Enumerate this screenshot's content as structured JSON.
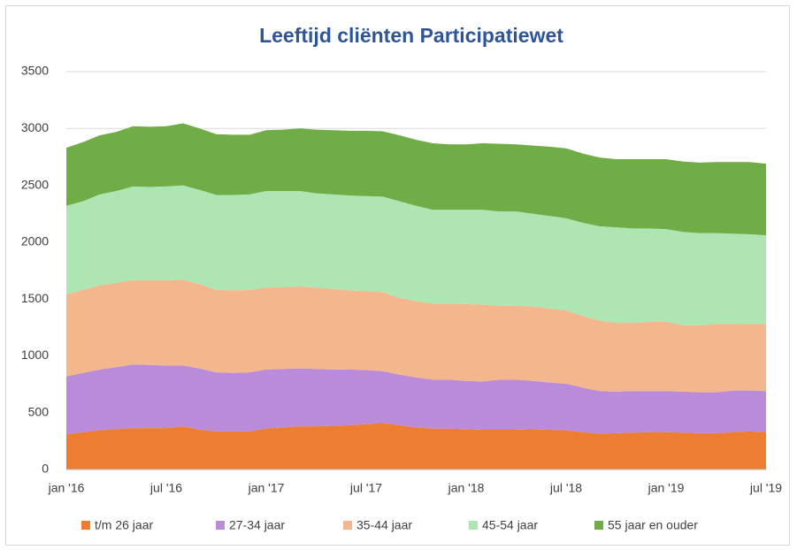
{
  "chart_data": {
    "type": "stacked_area",
    "title": "Leeftijd cliënten Participatiewet",
    "categories": [
      "jan '16",
      null,
      null,
      null,
      null,
      null,
      "jul '16",
      null,
      null,
      null,
      null,
      null,
      "jan '17",
      null,
      null,
      null,
      null,
      null,
      "jul '17",
      null,
      null,
      null,
      null,
      null,
      "jan '18",
      null,
      null,
      null,
      null,
      null,
      "jul '18",
      null,
      null,
      null,
      null,
      null,
      "jan '19",
      null,
      null,
      null,
      null,
      null,
      "jul '19"
    ],
    "series": [
      {
        "name": "t/m 26 jaar",
        "color": "#ed7d31",
        "values": [
          310,
          330,
          345,
          355,
          365,
          365,
          365,
          380,
          350,
          335,
          335,
          335,
          360,
          370,
          380,
          380,
          385,
          390,
          400,
          410,
          390,
          370,
          360,
          360,
          355,
          350,
          350,
          350,
          355,
          350,
          345,
          330,
          315,
          320,
          325,
          330,
          330,
          325,
          320,
          320,
          330,
          335,
          330
        ]
      },
      {
        "name": "27-34 jaar",
        "color": "#b98bd9",
        "values": [
          510,
          520,
          535,
          545,
          560,
          555,
          550,
          535,
          540,
          520,
          515,
          520,
          520,
          515,
          510,
          505,
          495,
          490,
          475,
          455,
          445,
          440,
          430,
          430,
          425,
          425,
          440,
          440,
          425,
          415,
          410,
          390,
          375,
          365,
          365,
          360,
          360,
          360,
          360,
          360,
          365,
          360,
          360
        ]
      },
      {
        "name": "35-44 jaar",
        "color": "#f4b68d",
        "values": [
          720,
          730,
          740,
          745,
          740,
          745,
          750,
          755,
          740,
          725,
          725,
          725,
          720,
          720,
          720,
          715,
          710,
          695,
          695,
          695,
          675,
          670,
          670,
          670,
          675,
          675,
          650,
          650,
          655,
          650,
          645,
          630,
          620,
          605,
          600,
          610,
          610,
          585,
          590,
          600,
          585,
          585,
          590
        ]
      },
      {
        "name": "45-54 jaar",
        "color": "#ade6b2",
        "values": [
          780,
          780,
          800,
          805,
          825,
          820,
          825,
          830,
          830,
          835,
          840,
          840,
          850,
          845,
          840,
          830,
          830,
          835,
          835,
          840,
          850,
          840,
          825,
          825,
          830,
          835,
          830,
          830,
          815,
          815,
          810,
          820,
          830,
          840,
          830,
          820,
          815,
          820,
          810,
          800,
          795,
          790,
          780
        ]
      },
      {
        "name": "55 jaar en ouder",
        "color": "#70ad47",
        "values": [
          510,
          520,
          520,
          520,
          530,
          530,
          530,
          545,
          540,
          535,
          530,
          525,
          535,
          540,
          550,
          560,
          565,
          570,
          575,
          575,
          580,
          580,
          585,
          575,
          575,
          585,
          595,
          590,
          600,
          610,
          615,
          610,
          605,
          600,
          610,
          610,
          615,
          620,
          620,
          625,
          630,
          635,
          630
        ]
      }
    ],
    "ylim": [
      0,
      3500
    ],
    "yticks": [
      0,
      500,
      1000,
      1500,
      2000,
      2500,
      3000,
      3500
    ],
    "grid": true
  }
}
